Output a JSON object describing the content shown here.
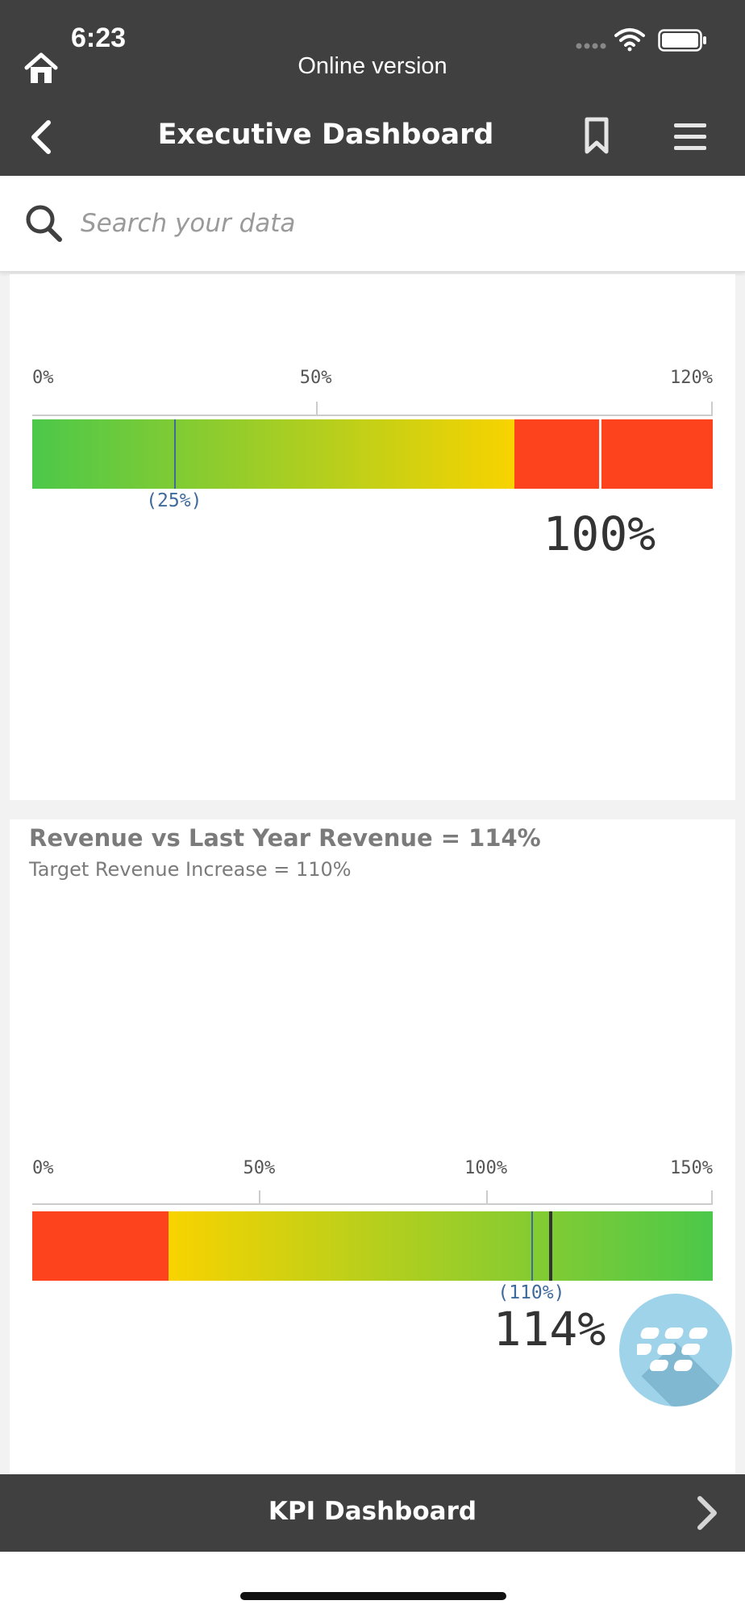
{
  "status_bar": {
    "time": "6:23",
    "connection_label": "Online version"
  },
  "app_bar": {
    "title": "Executive Dashboard"
  },
  "search": {
    "placeholder": "Search your data"
  },
  "kpi_cards": [
    {
      "title": "",
      "subtitle": "",
      "chart_data": {
        "type": "bar",
        "axis_ticks": [
          "0%",
          "50%",
          "120%"
        ],
        "xlim": [
          0,
          120
        ],
        "segments": [
          {
            "from": 0,
            "to": 85,
            "color_start": "#4cc84a",
            "color_end": "#f8d300"
          },
          {
            "from": 85,
            "to": 120,
            "color": "#fc431d"
          }
        ],
        "target": 25,
        "target_label": "(25%)",
        "value": 100,
        "value_label": "100%"
      }
    },
    {
      "title": "Revenue vs Last Year Revenue = 114%",
      "subtitle": "Target Revenue Increase = 110%",
      "chart_data": {
        "type": "bar",
        "axis_ticks": [
          "0%",
          "50%",
          "100%",
          "150%"
        ],
        "xlim": [
          0,
          150
        ],
        "segments": [
          {
            "from": 0,
            "to": 30,
            "color": "#fc431d"
          },
          {
            "from": 30,
            "to": 150,
            "color_start": "#f8d300",
            "color_end": "#4cc84a"
          }
        ],
        "target": 110,
        "target_label": "(110%)",
        "value": 114,
        "value_label": "114%"
      }
    }
  ],
  "bottom_bar": {
    "title": "KPI Dashboard"
  },
  "colors": {
    "bar_background": "#404040",
    "target_marker": "#3f6a9c",
    "value_marker": "#333333"
  },
  "icons": [
    "home-icon",
    "signal-icon",
    "wifi-icon",
    "battery-icon",
    "back-icon",
    "bookmark-icon",
    "menu-icon",
    "search-icon",
    "chevron-right-icon",
    "blackberry-icon"
  ]
}
